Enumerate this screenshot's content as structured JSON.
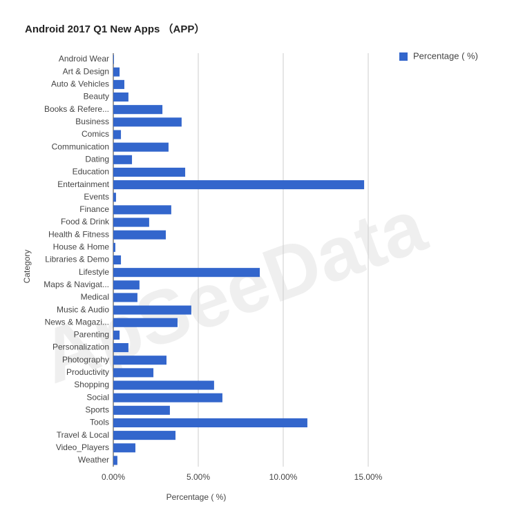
{
  "chart_data": {
    "type": "hbar",
    "title": "Android 2017 Q1 New Apps （APP）",
    "x_label": "Percentage ( %)",
    "y_label": "Category",
    "watermark": "ApSeeData",
    "categories": [
      "Android Wear",
      "Art & Design",
      "Auto & Vehicles",
      "Beauty",
      "Books & Refere...",
      "Business",
      "Comics",
      "Communication",
      "Dating",
      "Education",
      "Entertainment",
      "Events",
      "Finance",
      "Food & Drink",
      "Health & Fitness",
      "House & Home",
      "Libraries & Demo",
      "Lifestyle",
      "Maps & Navigat...",
      "Medical",
      "Music & Audio",
      "News & Magazi...",
      "Parenting",
      "Personalization",
      "Photography",
      "Productivity",
      "Shopping",
      "Social",
      "Sports",
      "Tools",
      "Travel & Local",
      "Video_Players",
      "Weather"
    ],
    "series": [
      {
        "name": "Percentage ( %)",
        "color": "#3366cc",
        "values": [
          0.04,
          0.37,
          0.65,
          0.89,
          2.89,
          4.02,
          0.45,
          3.25,
          1.1,
          4.23,
          14.76,
          0.16,
          3.41,
          2.11,
          3.09,
          0.12,
          0.45,
          8.62,
          1.54,
          1.42,
          4.59,
          3.78,
          0.37,
          0.89,
          3.13,
          2.36,
          5.93,
          6.42,
          3.33,
          11.42,
          3.66,
          1.3,
          0.24
        ]
      }
    ],
    "xlim": [
      0,
      15
    ],
    "xticks": [
      {
        "value": 0,
        "label": "0.00%"
      },
      {
        "value": 5,
        "label": "5.00%"
      },
      {
        "value": 10,
        "label": "10.00%"
      },
      {
        "value": 15,
        "label": "15.00%"
      }
    ],
    "grid": true,
    "legend": "top-right"
  }
}
